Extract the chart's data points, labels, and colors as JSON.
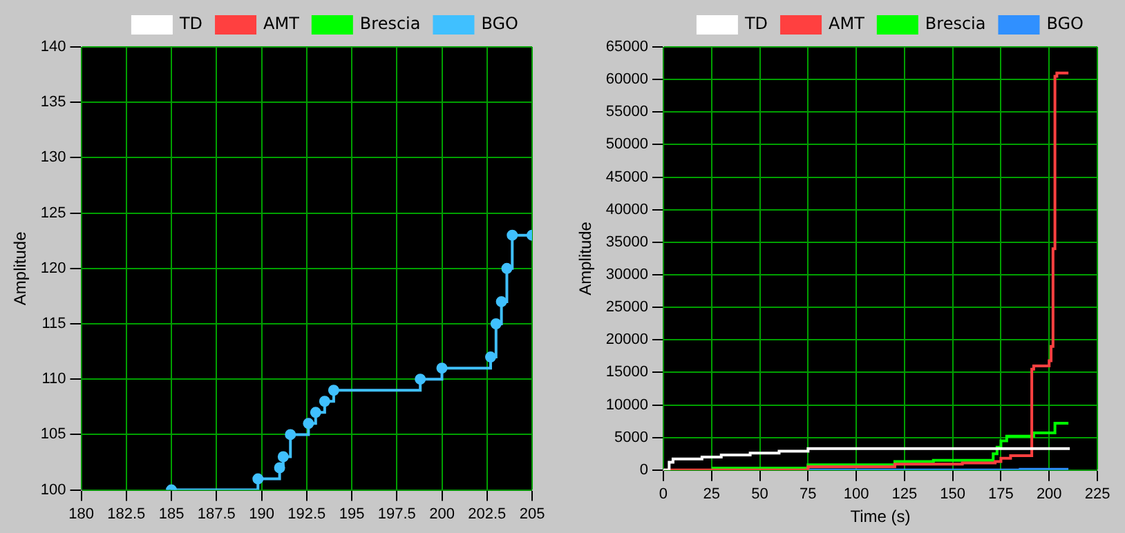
{
  "chart_data": [
    {
      "type": "step",
      "ylabel": "Amplitude",
      "xlim": [
        180,
        205
      ],
      "xticks": [
        180,
        182.5,
        185,
        187.5,
        190,
        192.5,
        195,
        197.5,
        200,
        202.5,
        205
      ],
      "ylim": [
        100,
        140
      ],
      "yticks": [
        100,
        105,
        110,
        115,
        120,
        125,
        130,
        135,
        140
      ],
      "grid": true,
      "legend": "top right",
      "marker": "circle",
      "series": [
        {
          "name": "TD",
          "color": "#ffffff"
        },
        {
          "name": "AMT",
          "color": "#ff4040"
        },
        {
          "name": "Brescia",
          "color": "#00ff00"
        },
        {
          "name": "BGO",
          "color": "#40c0ff",
          "x": [
            185,
            189.8,
            191,
            191.2,
            191.6,
            192.6,
            193,
            193.5,
            194,
            198.8,
            200,
            202.7,
            203,
            203.3,
            203.6,
            203.9,
            205
          ],
          "values": [
            100,
            101,
            102,
            103,
            105,
            106,
            107,
            108,
            109,
            110,
            111,
            112,
            115,
            117,
            120,
            123,
            123
          ]
        }
      ]
    },
    {
      "type": "step",
      "xlabel": "Time (s)",
      "ylabel": "Amplitude",
      "xlim": [
        0,
        225
      ],
      "xticks": [
        0,
        25,
        50,
        75,
        100,
        125,
        150,
        175,
        200,
        225
      ],
      "ylim": [
        0,
        65000
      ],
      "yticks": [
        0,
        5000,
        10000,
        15000,
        20000,
        25000,
        30000,
        35000,
        40000,
        45000,
        50000,
        55000,
        60000,
        65000
      ],
      "grid": true,
      "legend": "top right",
      "marker": "none",
      "series": [
        {
          "name": "TD",
          "color": "#ffffff",
          "x": [
            0,
            3,
            5,
            20,
            30,
            45,
            60,
            75,
            210
          ],
          "values": [
            0,
            1200,
            1700,
            2000,
            2300,
            2600,
            2900,
            3300,
            3500
          ]
        },
        {
          "name": "AMT",
          "color": "#ff4040",
          "x": [
            0,
            75,
            120,
            155,
            172,
            175,
            180,
            191,
            192,
            200,
            201,
            202,
            203,
            204,
            210
          ],
          "values": [
            0,
            500,
            900,
            1100,
            1300,
            1800,
            2200,
            15500,
            16000,
            16800,
            19000,
            34000,
            60500,
            61000,
            61000
          ]
        },
        {
          "name": "Brescia",
          "color": "#00ff00",
          "x": [
            25,
            75,
            120,
            140,
            171,
            173,
            175,
            178,
            192,
            202,
            203,
            210
          ],
          "values": [
            300,
            800,
            1300,
            1500,
            2500,
            3500,
            4500,
            5200,
            5700,
            5700,
            7200,
            7200
          ]
        },
        {
          "name": "BGO",
          "color": "#3090ff",
          "x": [
            75,
            185,
            210
          ],
          "values": [
            0,
            100,
            100
          ]
        }
      ]
    }
  ]
}
